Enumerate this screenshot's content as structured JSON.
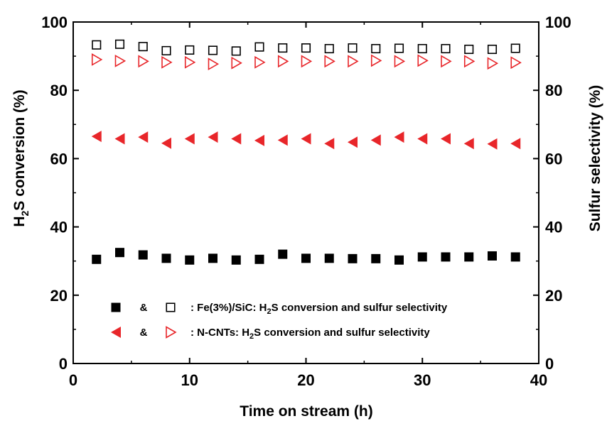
{
  "chart_data": {
    "type": "scatter",
    "xlabel": "Time on stream (h)",
    "ylabel_left": {
      "pre": "H",
      "sub": "2",
      "post": "S conversion (%)"
    },
    "ylabel_right": "Sulfur selectivity (%)",
    "xlim": [
      0,
      40
    ],
    "ylim": [
      0,
      100
    ],
    "ylim_right": [
      0,
      100
    ],
    "x_ticks": [
      0,
      10,
      20,
      30,
      40
    ],
    "y_ticks": [
      0,
      20,
      40,
      60,
      80,
      100
    ],
    "x": [
      2,
      4,
      6,
      8,
      10,
      12,
      14,
      16,
      18,
      20,
      22,
      24,
      26,
      28,
      30,
      32,
      34,
      36,
      38
    ],
    "series": [
      {
        "key": "fe_conv",
        "marker": "filled-square",
        "color": "#000000",
        "values": [
          30.5,
          32.5,
          31.8,
          30.8,
          30.3,
          30.8,
          30.3,
          30.5,
          32.0,
          30.8,
          30.8,
          30.7,
          30.7,
          30.3,
          31.2,
          31.2,
          31.2,
          31.5,
          31.2
        ]
      },
      {
        "key": "fe_sel",
        "marker": "open-square",
        "color": "#000000",
        "values": [
          93.3,
          93.5,
          92.8,
          91.6,
          91.8,
          91.7,
          91.5,
          92.7,
          92.4,
          92.4,
          92.2,
          92.4,
          92.2,
          92.3,
          92.2,
          92.2,
          92.0,
          92.0,
          92.3
        ]
      },
      {
        "key": "cnt_conv",
        "marker": "filled-triangle-left",
        "color": "#e8262a",
        "values": [
          66.5,
          65.8,
          66.3,
          64.5,
          65.8,
          66.3,
          65.8,
          65.3,
          65.4,
          65.8,
          64.4,
          64.8,
          65.4,
          66.3,
          65.8,
          65.8,
          64.4,
          64.3,
          64.4
        ]
      },
      {
        "key": "cnt_sel",
        "marker": "open-triangle-right",
        "color": "#e8262a",
        "values": [
          89.0,
          88.6,
          88.5,
          88.2,
          88.2,
          87.7,
          88.0,
          88.2,
          88.5,
          88.5,
          88.5,
          88.5,
          88.7,
          88.5,
          88.7,
          88.5,
          88.5,
          87.9,
          88.1
        ]
      }
    ],
    "legend": [
      {
        "sep": "&",
        "pre": ": Fe(3%)/SiC: H",
        "sub": "2",
        "post": "S conversion and sulfur selectivity",
        "marker_a": "filled-square",
        "marker_b": "open-square",
        "color": "#000000"
      },
      {
        "sep": "&",
        "pre": ": N-CNTs: H",
        "sub": "2",
        "post": "S conversion and sulfur selectivity",
        "marker_a": "filled-triangle-left",
        "marker_b": "open-triangle-right",
        "color": "#e8262a"
      }
    ],
    "legend_position": "bottom-left"
  }
}
